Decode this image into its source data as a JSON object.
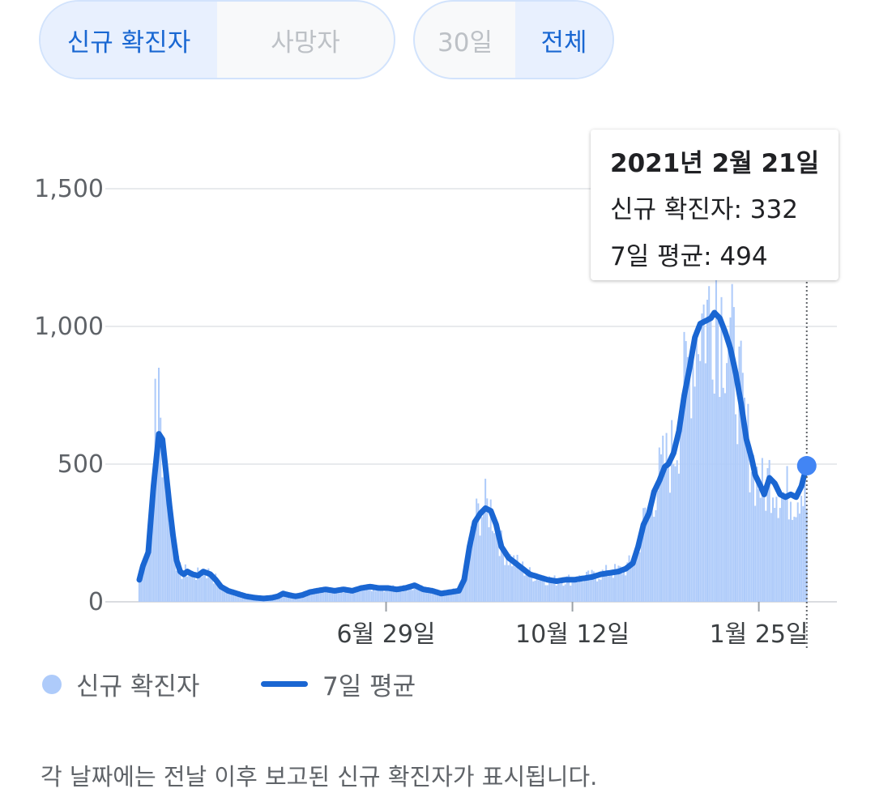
{
  "metric_toggle": {
    "options": [
      "신규 확진자",
      "사망자"
    ],
    "selected": 0
  },
  "range_toggle": {
    "options": [
      "30일",
      "전체"
    ],
    "selected": 1
  },
  "tooltip": {
    "date": "2021년 2월 21일",
    "new_cases": "신규 확진자: 332",
    "avg": "7일 평균: 494"
  },
  "legend": {
    "bars": "신규 확진자",
    "line": "7일 평균"
  },
  "footnote": "각 날짜에는 전날 이후 보고된 신규 확진자가 표시됩니다.",
  "colors": {
    "bar": "#aecbfa",
    "line": "#1a66d2",
    "accent": "#1967d2",
    "grid": "#e8eaed",
    "marker": "#4285f4"
  },
  "chart_data": {
    "type": "bar",
    "ylim": [
      0,
      1500
    ],
    "yticks": [
      0,
      500,
      1000,
      1500
    ],
    "ytick_labels": [
      "0",
      "500",
      "1,000",
      "1,500"
    ],
    "xrange": [
      0,
      393
    ],
    "xticks": [
      {
        "x": 139,
        "label": "6월 29일"
      },
      {
        "x": 244,
        "label": "10월 12일"
      },
      {
        "x": 349,
        "label": "1월 25일"
      }
    ],
    "highlight": {
      "x": 376,
      "label": "2021년 2월 21일",
      "new_cases": 332,
      "avg7": 494
    },
    "avg_keypoints": [
      [
        0,
        80
      ],
      [
        2,
        130
      ],
      [
        5,
        180
      ],
      [
        8,
        420
      ],
      [
        11,
        610
      ],
      [
        13,
        590
      ],
      [
        15,
        470
      ],
      [
        17,
        350
      ],
      [
        19,
        240
      ],
      [
        21,
        150
      ],
      [
        23,
        110
      ],
      [
        25,
        100
      ],
      [
        27,
        110
      ],
      [
        30,
        100
      ],
      [
        33,
        95
      ],
      [
        36,
        110
      ],
      [
        40,
        100
      ],
      [
        43,
        80
      ],
      [
        46,
        55
      ],
      [
        50,
        40
      ],
      [
        55,
        30
      ],
      [
        60,
        20
      ],
      [
        65,
        15
      ],
      [
        70,
        12
      ],
      [
        75,
        15
      ],
      [
        78,
        20
      ],
      [
        81,
        30
      ],
      [
        84,
        25
      ],
      [
        88,
        20
      ],
      [
        92,
        25
      ],
      [
        96,
        35
      ],
      [
        100,
        40
      ],
      [
        105,
        45
      ],
      [
        110,
        40
      ],
      [
        115,
        45
      ],
      [
        120,
        40
      ],
      [
        125,
        50
      ],
      [
        130,
        55
      ],
      [
        135,
        50
      ],
      [
        140,
        50
      ],
      [
        145,
        45
      ],
      [
        150,
        50
      ],
      [
        155,
        60
      ],
      [
        160,
        45
      ],
      [
        165,
        40
      ],
      [
        170,
        30
      ],
      [
        175,
        35
      ],
      [
        180,
        40
      ],
      [
        183,
        80
      ],
      [
        186,
        200
      ],
      [
        189,
        290
      ],
      [
        192,
        320
      ],
      [
        195,
        340
      ],
      [
        198,
        330
      ],
      [
        201,
        280
      ],
      [
        204,
        200
      ],
      [
        208,
        160
      ],
      [
        212,
        140
      ],
      [
        216,
        120
      ],
      [
        220,
        100
      ],
      [
        225,
        90
      ],
      [
        230,
        80
      ],
      [
        235,
        75
      ],
      [
        240,
        80
      ],
      [
        245,
        80
      ],
      [
        250,
        85
      ],
      [
        255,
        90
      ],
      [
        260,
        100
      ],
      [
        265,
        105
      ],
      [
        270,
        110
      ],
      [
        274,
        120
      ],
      [
        278,
        140
      ],
      [
        281,
        200
      ],
      [
        284,
        280
      ],
      [
        287,
        320
      ],
      [
        290,
        400
      ],
      [
        293,
        440
      ],
      [
        296,
        490
      ],
      [
        298,
        500
      ],
      [
        301,
        540
      ],
      [
        304,
        620
      ],
      [
        307,
        750
      ],
      [
        310,
        850
      ],
      [
        313,
        960
      ],
      [
        316,
        1010
      ],
      [
        319,
        1020
      ],
      [
        322,
        1030
      ],
      [
        324,
        1050
      ],
      [
        327,
        1030
      ],
      [
        330,
        980
      ],
      [
        333,
        920
      ],
      [
        336,
        830
      ],
      [
        339,
        720
      ],
      [
        342,
        590
      ],
      [
        345,
        520
      ],
      [
        347,
        460
      ],
      [
        350,
        420
      ],
      [
        352,
        390
      ],
      [
        355,
        450
      ],
      [
        358,
        430
      ],
      [
        361,
        390
      ],
      [
        364,
        380
      ],
      [
        367,
        390
      ],
      [
        370,
        380
      ],
      [
        373,
        420
      ],
      [
        376,
        494
      ]
    ],
    "series": [
      {
        "name": "신규 확진자",
        "type": "bar"
      },
      {
        "name": "7일 평균",
        "type": "line"
      }
    ]
  }
}
